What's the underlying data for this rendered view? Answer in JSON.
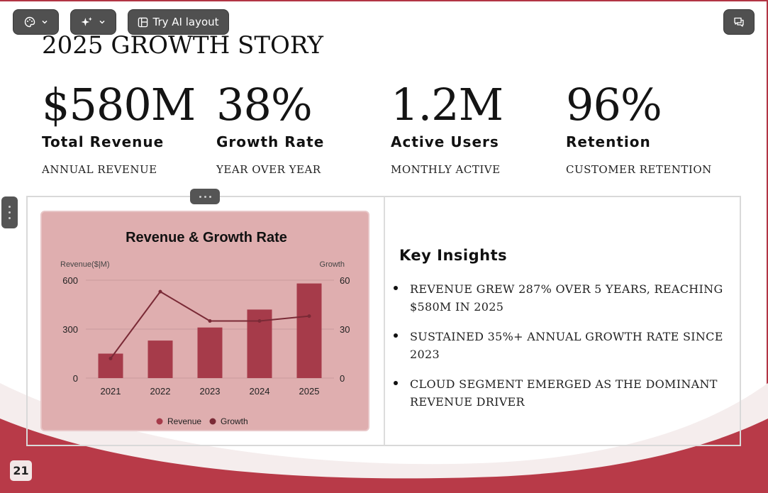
{
  "toolbar": {
    "theme_icon": "palette-icon",
    "magic_icon": "sparkles-icon",
    "ai_layout_label": "Try AI layout",
    "ai_layout_icon": "layout-icon",
    "chat_icon": "comments-icon"
  },
  "slide": {
    "title": "2025 GROWTH STORY",
    "stats": [
      {
        "value": "$580M",
        "label": "Total Revenue",
        "sub": "ANNUAL REVENUE"
      },
      {
        "value": "38%",
        "label": "Growth Rate",
        "sub": "YEAR OVER YEAR"
      },
      {
        "value": "1.2M",
        "label": "Active Users",
        "sub": "MONTHLY ACTIVE"
      },
      {
        "value": "96%",
        "label": "Retention",
        "sub": "CUSTOMER RETENTION"
      }
    ],
    "insights": {
      "title": "Key Insights",
      "items": [
        "REVENUE GREW 287% OVER 5 YEARS, REACHING $580M IN 2025",
        "SUSTAINED 35%+ ANNUAL GROWTH RATE SINCE 2023",
        "CLOUD SEGMENT EMERGED AS THE DOMINANT REVENUE DRIVER"
      ]
    },
    "page_number": "21"
  },
  "colors": {
    "accent": "#b23544",
    "bar": "#a63b4a",
    "line": "#7a2a36",
    "chart_bg": "#dfaeaf"
  },
  "chart_data": {
    "type": "bar",
    "title": "Revenue & Growth Rate",
    "categories": [
      "2021",
      "2022",
      "2023",
      "2024",
      "2025"
    ],
    "series": [
      {
        "name": "Revenue",
        "type": "bar",
        "axis": "left",
        "values": [
          150,
          230,
          310,
          420,
          580
        ]
      },
      {
        "name": "Growth",
        "type": "line",
        "axis": "right",
        "values": [
          12,
          53,
          35,
          35,
          38
        ]
      }
    ],
    "ylabel": "Revenue($|M)",
    "y2label": "Growth",
    "ylim": [
      0,
      600
    ],
    "y2lim": [
      0,
      60
    ],
    "yticks": [
      0,
      300,
      600
    ],
    "y2ticks": [
      0,
      30,
      60
    ],
    "grid": true,
    "legend": "bottom"
  }
}
